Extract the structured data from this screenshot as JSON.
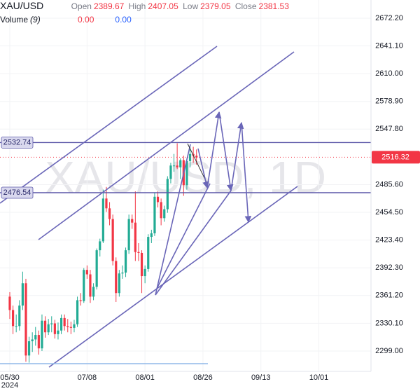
{
  "header": {
    "symbol": "XAU/USD",
    "open_label": "Open",
    "open": "2389.67",
    "high_label": "High",
    "high": "2407.05",
    "low_label": "Low",
    "low": "2379.05",
    "close_label": "Close",
    "close": "2381.53",
    "volume_label": "Volume",
    "volume_param": "(9)",
    "volume_a": "0.00",
    "volume_b": "0.00"
  },
  "chart_data": {
    "type": "candlestick",
    "watermark": "XAU/USD, 1D",
    "up_color": "#22ab94",
    "down_color": "#f23645",
    "x": [
      0,
      1,
      2,
      3,
      4,
      5,
      6,
      7,
      8,
      9,
      10,
      11,
      12,
      13,
      14,
      15,
      16,
      17,
      18,
      19,
      20,
      21,
      22,
      23,
      24,
      25,
      26,
      27,
      28,
      29,
      30,
      31,
      32,
      33,
      34,
      35,
      36,
      37,
      38,
      39,
      40,
      41,
      42,
      43,
      44,
      45,
      46,
      47,
      48,
      49,
      50,
      51,
      52,
      53,
      54,
      55,
      56,
      57,
      58
    ],
    "open": [
      2360,
      2345,
      2327,
      2327,
      2350,
      2375,
      2294,
      2310,
      2312,
      2317,
      2302,
      2333,
      2320,
      2329,
      2330,
      2318,
      2322,
      2336,
      2327,
      2326,
      2325,
      2329,
      2356,
      2355,
      2390,
      2385,
      2360,
      2371,
      2412,
      2422,
      2470,
      2459,
      2447,
      2400,
      2364,
      2386,
      2387,
      2412,
      2447,
      2443,
      2410,
      2409,
      2383,
      2391,
      2427,
      2431,
      2472,
      2466,
      2448,
      2458,
      2492,
      2507,
      2507,
      2505,
      2513,
      2485,
      2512,
      2520,
      2518
    ],
    "high": [
      2365,
      2350,
      2340,
      2356,
      2388,
      2380,
      2315,
      2320,
      2326,
      2322,
      2340,
      2338,
      2335,
      2338,
      2334,
      2331,
      2340,
      2340,
      2335,
      2332,
      2334,
      2360,
      2364,
      2392,
      2395,
      2390,
      2375,
      2414,
      2425,
      2480,
      2483,
      2466,
      2452,
      2404,
      2390,
      2395,
      2415,
      2452,
      2452,
      2478,
      2420,
      2412,
      2395,
      2430,
      2435,
      2477,
      2478,
      2470,
      2462,
      2495,
      2510,
      2520,
      2532,
      2515,
      2518,
      2515,
      2530,
      2528,
      2525
    ],
    "low": [
      2335,
      2318,
      2320,
      2322,
      2345,
      2287,
      2286,
      2298,
      2305,
      2295,
      2299,
      2314,
      2317,
      2320,
      2313,
      2312,
      2318,
      2322,
      2320,
      2318,
      2320,
      2326,
      2350,
      2353,
      2380,
      2353,
      2356,
      2368,
      2405,
      2420,
      2455,
      2440,
      2395,
      2354,
      2360,
      2380,
      2382,
      2408,
      2436,
      2400,
      2400,
      2364,
      2375,
      2388,
      2420,
      2428,
      2460,
      2440,
      2444,
      2454,
      2487,
      2500,
      2503,
      2492,
      2473,
      2480,
      2505,
      2510,
      2508
    ],
    "close": [
      2345,
      2327,
      2327,
      2350,
      2375,
      2294,
      2310,
      2312,
      2317,
      2302,
      2333,
      2320,
      2329,
      2330,
      2318,
      2322,
      2336,
      2327,
      2326,
      2325,
      2329,
      2356,
      2355,
      2390,
      2385,
      2360,
      2371,
      2412,
      2422,
      2470,
      2459,
      2447,
      2400,
      2364,
      2386,
      2387,
      2412,
      2447,
      2443,
      2410,
      2409,
      2383,
      2391,
      2427,
      2431,
      2472,
      2466,
      2448,
      2458,
      2492,
      2507,
      2507,
      2505,
      2513,
      2485,
      2512,
      2520,
      2518,
      2516
    ],
    "xlim": [
      -3.04,
      112.2
    ],
    "xticks": [
      {
        "value": 0,
        "label": "05/30"
      },
      {
        "value": 24,
        "label": "07/08"
      },
      {
        "value": 42,
        "label": "08/01"
      },
      {
        "value": 60,
        "label": "08/26"
      },
      {
        "value": 78,
        "label": "09/13"
      },
      {
        "value": 96,
        "label": "10/01"
      }
    ],
    "x_year_label": "2024",
    "ylim": [
      2276.2,
      2692.6
    ],
    "yticks": [
      {
        "value": 2672.2,
        "label": "2672.20"
      },
      {
        "value": 2641.1,
        "label": "2641.10"
      },
      {
        "value": 2610,
        "label": "2610.00"
      },
      {
        "value": 2578.9,
        "label": "2578.90"
      },
      {
        "value": 2547.8,
        "label": "2547.80"
      },
      {
        "value": 2485.6,
        "label": "2485.60"
      },
      {
        "value": 2454.5,
        "label": "2454.50"
      },
      {
        "value": 2423.4,
        "label": "2423.40"
      },
      {
        "value": 2392.3,
        "label": "2392.30"
      },
      {
        "value": 2361.2,
        "label": "2361.20"
      },
      {
        "value": 2330.1,
        "label": "2330.10"
      },
      {
        "value": 2299,
        "label": "2299.00"
      }
    ],
    "price_lines": [
      2532.74,
      2476.54
    ],
    "price_line_color": "#5b57a8",
    "last_price": 2516.32
  }
}
